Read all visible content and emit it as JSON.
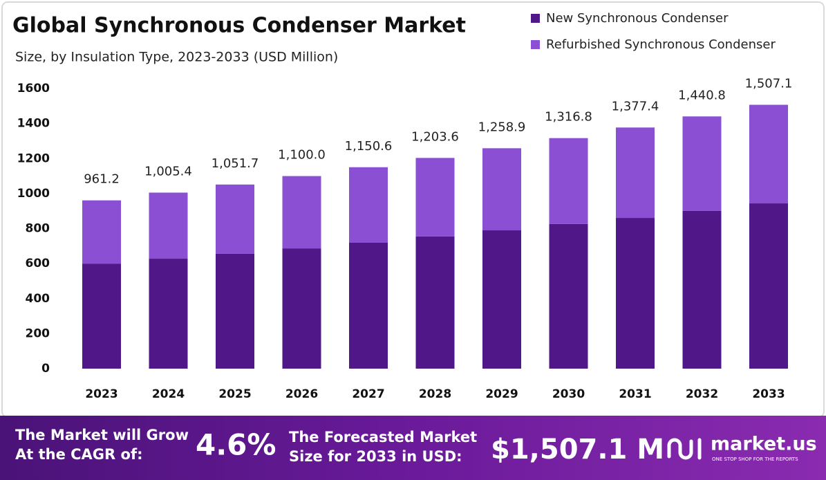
{
  "chart_data": {
    "type": "stacked_bar",
    "title": "Global Synchronous Condenser Market",
    "subtitle": "Size, by Insulation Type, 2023-2033 (USD Million)",
    "categories": [
      "2023",
      "2024",
      "2025",
      "2026",
      "2027",
      "2028",
      "2029",
      "2030",
      "2031",
      "2032",
      "2033"
    ],
    "series": [
      {
        "name": "New Synchronous Condenser",
        "color": "#4f1787",
        "values": [
          600,
          628,
          656,
          687,
          719,
          755,
          790,
          826,
          861,
          901,
          944
        ]
      },
      {
        "name": "Refurbished Synchronous Condenser",
        "color": "#8b4fd3",
        "values": [
          361.2,
          377.4,
          395.7,
          413,
          431.6,
          448.6,
          468.9,
          490.8,
          516.4,
          539.8,
          563.1
        ]
      }
    ],
    "totals": [
      961.2,
      1005.4,
      1051.7,
      1100,
      1150.6,
      1203.6,
      1258.9,
      1316.8,
      1377.4,
      1440.8,
      1507.1
    ],
    "total_labels": [
      "961.2",
      "1,005.4",
      "1,051.7",
      "1,100.0",
      "1,150.6",
      "1,203.6",
      "1,258.9",
      "1,316.8",
      "1,377.4",
      "1,440.8",
      "1,507.1"
    ],
    "ylim": [
      0,
      1600
    ],
    "yticks": [
      0,
      200,
      400,
      600,
      800,
      1000,
      1200,
      1400,
      1600
    ],
    "grid": false,
    "legend": "top-right"
  },
  "footer": {
    "cagr_text_1": "The Market will Grow",
    "cagr_text_2": "At the CAGR of:",
    "cagr": "4.6%",
    "forecast_text_1": "The Forecasted Market",
    "forecast_text_2": "Size for 2033 in USD:",
    "forecast": "$1,507.1 M",
    "brand": "market.us",
    "tagline": "ONE STOP SHOP FOR THE REPORTS"
  }
}
